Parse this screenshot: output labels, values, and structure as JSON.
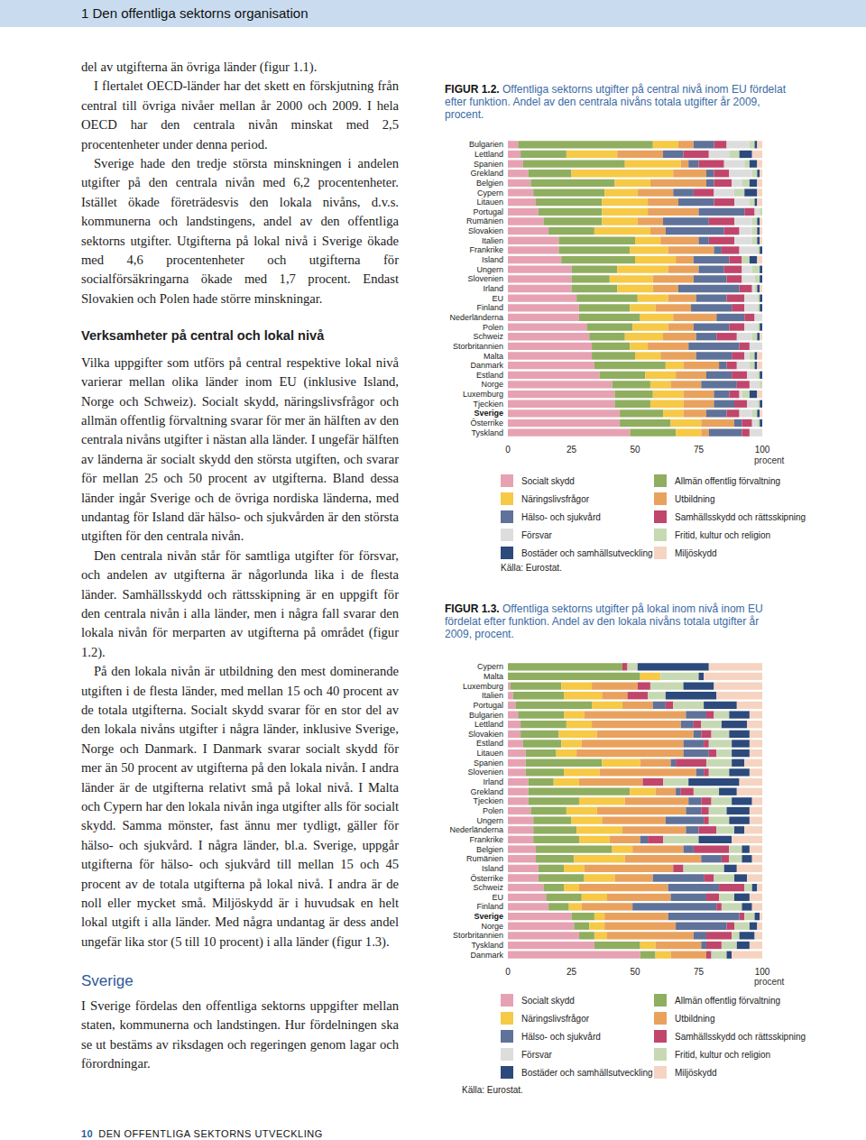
{
  "header": {
    "title": "1 Den offentliga sektorns organisation"
  },
  "footer": {
    "page_number": "10",
    "title": "DEN OFFENTLIGA SEKTORNS UTVECKLING"
  },
  "sections": [
    {
      "heading": null,
      "paragraphs": [
        "del av utgifterna än övriga länder (figur 1.1).",
        "I flertalet OECD-länder har det skett en förskjutning från central till övriga nivåer mellan år 2000 och 2009. I hela OECD har den centrala nivån minskat med 2,5 procentenheter under denna period.",
        "Sverige hade den tredje största minskningen i andelen utgifter på den centrala nivån med 6,2 procentenheter. Istället ökade företrädesvis den lokala nivåns, d.v.s. kommunerna och landstingens, andel av den offentliga sektorns utgifter. Utgifterna på lokal nivå i Sverige ökade med 4,6 procentenheter och utgifterna för socialförsäkringarna ökade med 1,7 procent. Endast Slovakien och Polen hade större minskningar."
      ]
    },
    {
      "heading": "Verksamheter på central och lokal nivå",
      "paragraphs": [
        "Vilka uppgifter som utförs på central respektive lokal nivå varierar mellan olika länder inom EU (inklusive Island, Norge och Schweiz). Socialt skydd, näringslivsfrågor och allmän offentlig förvaltning svarar för mer än hälften av den centrala nivåns utgifter i nästan alla länder. I ungefär hälften av länderna är socialt skydd den största utgiften, och svarar för mellan 25 och 50 procent av utgifterna. Bland dessa länder ingår Sverige och de övriga nordiska länderna, med undantag för Island där hälso- och sjukvården är den största utgiften för den centrala nivån.",
        "Den centrala nivån står för samtliga utgifter för försvar, och andelen av utgifterna är någorlunda lika i de flesta länder. Samhällsskydd och rättsskipning är en uppgift för den centrala nivån i alla länder, men i några fall svarar den lokala nivån för merparten av utgifterna på området (figur 1.2).",
        "På den lokala nivån är utbildning den mest dominerande utgiften i de flesta länder, med mellan 15 och 40 procent av de totala utgifterna. Socialt skydd svarar för en stor del av den lokala nivåns utgifter i några länder, inklusive Sverige, Norge och Danmark. I Danmark svarar socialt skydd för mer än 50 procent av utgifterna på den lokala nivån. I andra länder är de utgifterna relativt små på lokal nivå. I Malta och Cypern har den lokala nivån inga utgifter alls för socialt skydd. Samma mönster, fast ännu mer tydligt, gäller för hälso- och sjukvård. I några länder, bl.a. Sverige, uppgår utgifterna för hälso- och sjukvård till mellan 15 och 45 procent av de totala utgifterna på lokal nivå. I andra är de noll eller mycket små. Miljöskydd är i huvudsak en helt lokal utgift i alla länder. Med några undantag är dess andel ungefär lika stor (5 till 10 procent) i alla länder (figur 1.3)."
      ]
    },
    {
      "heading": "Sverige",
      "paragraphs": [
        "I Sverige fördelas den offentliga sektorns uppgifter mellan staten, kommunerna och landstingen. Hur fördelningen ska se ut bestäms av riksdagen och regeringen genom lagar och förordningar."
      ]
    }
  ],
  "chart_data": [
    {
      "type": "bar",
      "figure_label": "FIGUR 1.2.",
      "title": "Offentliga sektorns utgifter på central nivå inom EU fördelat efter funktion. Andel av den centrala nivåns totala utgifter år 2009, procent.",
      "source": "Källa: Eurostat.",
      "xlabel": "procent",
      "orientation": "horizontal",
      "stacked": true,
      "grid": false,
      "xlim": [
        0,
        100
      ],
      "xticks": [
        0,
        25,
        50,
        75,
        100
      ],
      "categories": [
        "Bulgarien",
        "Lettland",
        "Spanien",
        "Grekland",
        "Belgien",
        "Cypern",
        "Litauen",
        "Portugal",
        "Rumänien",
        "Slovakien",
        "Italien",
        "Frankrike",
        "Island",
        "Ungern",
        "Slovenien",
        "Irland",
        "EU",
        "Finland",
        "Nederländerna",
        "Polen",
        "Schweiz",
        "Storbritannien",
        "Malta",
        "Danmark",
        "Estland",
        "Norge",
        "Luxemburg",
        "Tjeckien",
        "Sverige",
        "Österrike",
        "Tyskland"
      ],
      "series": [
        {
          "name": "Socialt skydd",
          "color": "#e6a2b3",
          "values": [
            4,
            5,
            6,
            8,
            9,
            10,
            11,
            12,
            14,
            16,
            20,
            20,
            21,
            25,
            25,
            25,
            27,
            28,
            28,
            31,
            32,
            33,
            33,
            34,
            36,
            41,
            42,
            42,
            44,
            44,
            48
          ]
        },
        {
          "name": "Allmän offentlig förvaltning",
          "color": "#8fae5f",
          "values": [
            53,
            18,
            40,
            17,
            33,
            28,
            26,
            25,
            23,
            18,
            30,
            28,
            29,
            18,
            15,
            18,
            24,
            20,
            24,
            18,
            14,
            15,
            17,
            28,
            18,
            15,
            15,
            14,
            17,
            20,
            18
          ]
        },
        {
          "name": "Näringslivsfrågor",
          "color": "#f6c946",
          "values": [
            10,
            20,
            22,
            40,
            14,
            13,
            18,
            18,
            14,
            22,
            10,
            15,
            16,
            20,
            17,
            14,
            12,
            10,
            13,
            14,
            15,
            7,
            10,
            7,
            12,
            8,
            12,
            13,
            8,
            12,
            10
          ]
        },
        {
          "name": "Utbildning",
          "color": "#e9a25e",
          "values": [
            6,
            18,
            3,
            13,
            22,
            14,
            12,
            20,
            10,
            6,
            15,
            18,
            7,
            12,
            16,
            10,
            11,
            14,
            17,
            10,
            13,
            16,
            14,
            14,
            12,
            12,
            12,
            12,
            9,
            13,
            3
          ]
        },
        {
          "name": "Hälso- och sjukvård",
          "color": "#5f7299",
          "values": [
            8,
            8,
            4,
            3,
            3,
            8,
            14,
            18,
            18,
            23,
            4,
            3,
            14,
            10,
            13,
            24,
            12,
            16,
            11,
            14,
            8,
            20,
            14,
            3,
            10,
            14,
            6,
            8,
            8,
            3,
            13
          ]
        },
        {
          "name": "Samhällsskydd och rättsskipning",
          "color": "#c1466b",
          "values": [
            5,
            10,
            10,
            6,
            7,
            8,
            8,
            4,
            10,
            6,
            10,
            7,
            5,
            7,
            6,
            5,
            7,
            5,
            4,
            6,
            8,
            4,
            5,
            4,
            6,
            5,
            4,
            5,
            5,
            4,
            3
          ]
        },
        {
          "name": "Försvar",
          "color": "#dddddd",
          "values": [
            9,
            8,
            8,
            9,
            4,
            8,
            6,
            2,
            7,
            5,
            7,
            7,
            0,
            4,
            5,
            1,
            5,
            5,
            3,
            5,
            6,
            5,
            2,
            5,
            4,
            4,
            1,
            4,
            5,
            2,
            5
          ]
        },
        {
          "name": "Fritid, kultur och religion",
          "color": "#c7d9b3",
          "values": [
            2,
            4,
            2,
            2,
            3,
            4,
            2,
            1,
            2,
            2,
            2,
            1,
            3,
            3,
            2,
            1,
            1,
            1,
            0,
            1,
            2,
            0,
            2,
            2,
            1,
            1,
            3,
            1,
            2,
            1,
            0
          ]
        },
        {
          "name": "Bostäder och samhällsutveckling",
          "color": "#2c4a7b",
          "values": [
            1,
            5,
            3,
            1,
            3,
            5,
            1,
            0,
            1,
            1,
            1,
            1,
            3,
            1,
            1,
            1,
            1,
            1,
            0,
            1,
            1,
            0,
            1,
            1,
            1,
            0,
            3,
            1,
            1,
            1,
            0
          ]
        },
        {
          "name": "Miljöskydd",
          "color": "#f6d4c1",
          "values": [
            2,
            4,
            2,
            1,
            2,
            2,
            2,
            0,
            1,
            1,
            1,
            0,
            2,
            0,
            0,
            1,
            0,
            0,
            0,
            0,
            1,
            0,
            2,
            2,
            0,
            0,
            2,
            0,
            1,
            0,
            0
          ]
        }
      ]
    },
    {
      "type": "bar",
      "figure_label": "FIGUR 1.3.",
      "title": "Offentliga sektorns utgifter på lokal inom nivå inom EU fördelat efter funktion. Andel av den lokala nivåns totala utgifter år 2009, procent.",
      "source": "Källa: Eurostat.",
      "xlabel": "procent",
      "orientation": "horizontal",
      "stacked": true,
      "grid": false,
      "xlim": [
        0,
        100
      ],
      "xticks": [
        0,
        25,
        50,
        75,
        100
      ],
      "categories": [
        "Cypern",
        "Malta",
        "Luxemburg",
        "Italien",
        "Portugal",
        "Bulgarien",
        "Lettland",
        "Slovakien",
        "Estland",
        "Litauen",
        "Spanien",
        "Slovenien",
        "Irland",
        "Grekland",
        "Tjeckien",
        "Polen",
        "Ungern",
        "Nederländerna",
        "Frankrike",
        "Belgien",
        "Rumänien",
        "Island",
        "Österrike",
        "Schweiz",
        "EU",
        "Finland",
        "Sverige",
        "Norge",
        "Storbritannien",
        "Tyskland",
        "Danmark"
      ],
      "series": [
        {
          "name": "Socialt skydd",
          "color": "#e6a2b3",
          "values": [
            0,
            0,
            1,
            2,
            3,
            4,
            5,
            5,
            6,
            7,
            7,
            7,
            8,
            8,
            8,
            9,
            10,
            10,
            10,
            11,
            11,
            12,
            12,
            14,
            15,
            16,
            25,
            26,
            28,
            34,
            52
          ]
        },
        {
          "name": "Allmän offentlig förvaltning",
          "color": "#8fae5f",
          "values": [
            45,
            52,
            20,
            20,
            30,
            18,
            18,
            15,
            15,
            12,
            30,
            15,
            10,
            40,
            20,
            14,
            15,
            17,
            18,
            30,
            15,
            10,
            18,
            8,
            14,
            8,
            9,
            6,
            6,
            18,
            6
          ]
        },
        {
          "name": "Näringslivsfrågor",
          "color": "#f6c946",
          "values": [
            0,
            8,
            12,
            15,
            12,
            8,
            10,
            15,
            8,
            8,
            15,
            14,
            10,
            10,
            18,
            12,
            12,
            18,
            12,
            8,
            20,
            8,
            12,
            6,
            10,
            5,
            4,
            6,
            5,
            6,
            6
          ]
        },
        {
          "name": "Utbildning",
          "color": "#e9a25e",
          "values": [
            0,
            0,
            18,
            10,
            12,
            40,
            35,
            38,
            40,
            42,
            12,
            38,
            25,
            8,
            25,
            35,
            25,
            25,
            12,
            20,
            30,
            35,
            15,
            35,
            25,
            20,
            25,
            28,
            34,
            18,
            14
          ]
        },
        {
          "name": "Hälso- och sjukvård",
          "color": "#5f7299",
          "values": [
            0,
            0,
            0,
            0,
            5,
            8,
            5,
            3,
            8,
            10,
            2,
            3,
            0,
            2,
            5,
            6,
            15,
            5,
            3,
            4,
            8,
            0,
            20,
            20,
            14,
            33,
            28,
            20,
            5,
            2,
            0
          ]
        },
        {
          "name": "Samhällsskydd och rättsskipning",
          "color": "#c1466b",
          "values": [
            2,
            0,
            5,
            8,
            3,
            3,
            3,
            4,
            2,
            3,
            12,
            2,
            8,
            5,
            4,
            3,
            2,
            7,
            6,
            14,
            3,
            4,
            4,
            10,
            5,
            2,
            2,
            3,
            10,
            6,
            2
          ]
        },
        {
          "name": "Försvar",
          "color": "#dddddd",
          "values": [
            0,
            0,
            0,
            0,
            0,
            0,
            0,
            0,
            0,
            0,
            0,
            0,
            0,
            0,
            0,
            0,
            0,
            0,
            0,
            0,
            0,
            0,
            0,
            0,
            0,
            0,
            0,
            0,
            0,
            0,
            0
          ]
        },
        {
          "name": "Fritid, kultur och religion",
          "color": "#c7d9b3",
          "values": [
            4,
            15,
            13,
            7,
            12,
            6,
            8,
            7,
            9,
            6,
            10,
            8,
            10,
            10,
            8,
            7,
            8,
            7,
            14,
            5,
            5,
            16,
            8,
            3,
            6,
            8,
            4,
            6,
            3,
            6,
            6
          ]
        },
        {
          "name": "Bostäder och samhällsutveckling",
          "color": "#2c4a7b",
          "values": [
            28,
            2,
            12,
            20,
            13,
            8,
            10,
            8,
            7,
            7,
            5,
            8,
            20,
            7,
            8,
            9,
            8,
            4,
            13,
            3,
            4,
            5,
            5,
            2,
            6,
            4,
            2,
            3,
            6,
            5,
            2
          ]
        },
        {
          "name": "Miljöskydd",
          "color": "#f6d4c1",
          "values": [
            21,
            23,
            19,
            18,
            10,
            5,
            6,
            5,
            5,
            5,
            7,
            5,
            9,
            10,
            4,
            5,
            5,
            7,
            12,
            5,
            4,
            10,
            6,
            2,
            5,
            4,
            1,
            2,
            3,
            5,
            12
          ]
        }
      ]
    }
  ]
}
